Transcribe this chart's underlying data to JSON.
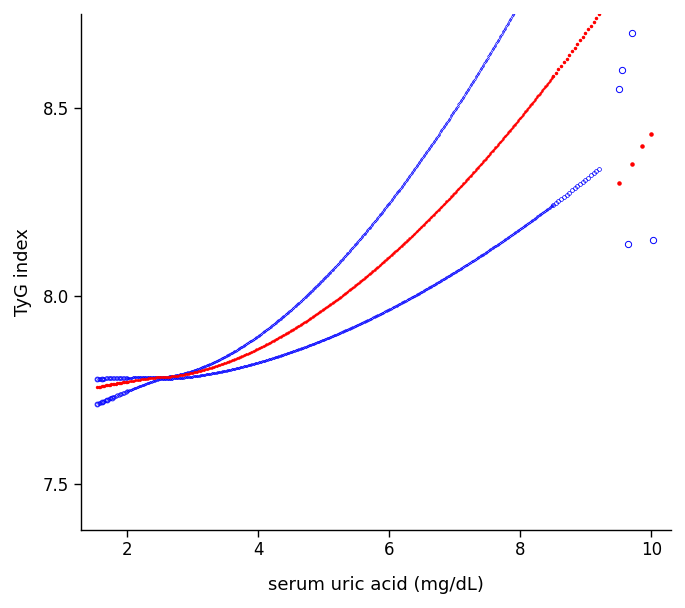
{
  "xlabel": "serum uric acid (mg/dL)",
  "ylabel": "TyG index",
  "xlim": [
    1.3,
    10.3
  ],
  "ylim": [
    7.38,
    8.75
  ],
  "xticks": [
    2,
    4,
    6,
    8,
    10
  ],
  "yticks": [
    7.5,
    8.0,
    8.5
  ],
  "blue_color": "#0000FF",
  "red_color": "#FF0000",
  "bg_color": "#FFFFFF",
  "figsize": [
    6.85,
    6.08
  ],
  "dpi": 100
}
